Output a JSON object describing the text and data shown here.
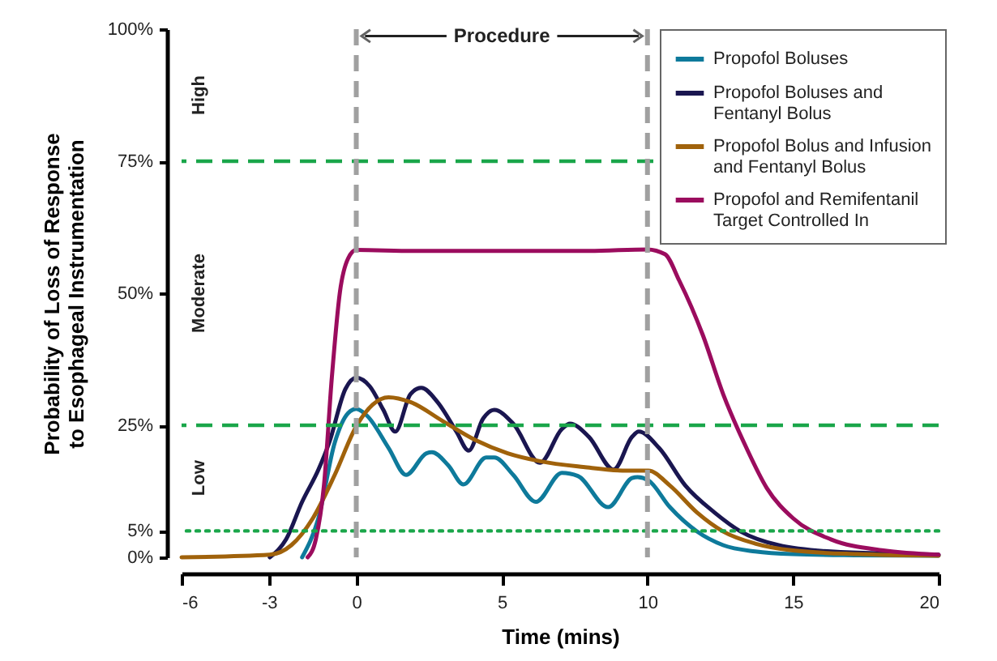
{
  "chart_data": {
    "type": "line",
    "xlabel": "Time (mins)",
    "ylabel": "Probability of Loss of Response to Esophageal Instrumentation",
    "xlim": [
      -6,
      20
    ],
    "xticks": [
      -6,
      -3,
      0,
      5,
      10,
      15,
      20
    ],
    "ylim": [
      0,
      100
    ],
    "yticks": [
      {
        "value": 0,
        "label": "0%"
      },
      {
        "value": 5,
        "label": "5%"
      },
      {
        "value": 25,
        "label": "25%"
      },
      {
        "value": 50,
        "label": "50%"
      },
      {
        "value": 75,
        "label": "75%"
      },
      {
        "value": 100,
        "label": "100%"
      }
    ],
    "grid": false,
    "legend": "top right",
    "marker": "none",
    "line_style": "solid",
    "series": [
      {
        "name": "Propofol Boluses",
        "color": "#0e7a9b",
        "x": [
          -1.86,
          -1.3,
          -0.74,
          -0.28,
          0,
          0.37,
          1.11,
          1.71,
          2.41,
          2.6,
          3.16,
          3.68,
          4.46,
          4.74,
          5.39,
          6.17,
          7.06,
          7.61,
          8.65,
          9.47,
          9.66,
          10.03,
          10.77,
          11.7,
          12.6,
          13.7,
          15,
          17.2,
          20
        ],
        "values": [
          0,
          7.4,
          21.7,
          27.3,
          28.1,
          26.8,
          20.7,
          15.6,
          19.7,
          19.9,
          17.4,
          13.8,
          18.9,
          18.9,
          15.6,
          10.5,
          16,
          15.4,
          9.5,
          15,
          15.2,
          14.6,
          9.5,
          4.9,
          2.3,
          1.1,
          0.6,
          0.4,
          0.3
        ]
      },
      {
        "name": "Propofol Boluses and Fentanyl Bolus",
        "color": "#1a1650",
        "x": [
          -2.97,
          -2.41,
          -1.86,
          -1.3,
          -0.93,
          -0.37,
          0,
          0.46,
          0.93,
          1.34,
          1.86,
          2.23,
          2.79,
          3.44,
          3.86,
          4.36,
          4.74,
          5.39,
          6.31,
          7.06,
          7.34,
          7.99,
          8.84,
          9.47,
          9.7,
          10.4,
          11.3,
          12.3,
          13.2,
          14.5,
          16.3,
          20
        ],
        "values": [
          0,
          3.4,
          10.5,
          16.6,
          21.7,
          31.9,
          34,
          32.4,
          27.9,
          23.8,
          30.9,
          32.1,
          29.4,
          23.8,
          20.2,
          26.3,
          27.9,
          25.3,
          17.9,
          24.3,
          25.3,
          22.8,
          16.6,
          22.8,
          23.8,
          20.7,
          13.6,
          8.5,
          4.9,
          2.3,
          1.1,
          0.5
        ]
      },
      {
        "name": "Propofol Bolus and Infusion and Fentanyl Bolus",
        "color": "#a0620b",
        "x": [
          -6,
          -2.97,
          -2.23,
          -1.49,
          -0.74,
          0,
          0.56,
          1.11,
          1.86,
          2.97,
          4.09,
          5.2,
          6.31,
          7.8,
          9.29,
          10.03,
          10.77,
          11.7,
          12.6,
          13.7,
          15,
          17.2,
          20
        ],
        "values": [
          0,
          0.5,
          2.3,
          7.4,
          15.6,
          24.8,
          28.9,
          30.3,
          29.4,
          25.8,
          22.2,
          19.7,
          18.2,
          17.1,
          16.4,
          16.4,
          13.6,
          8.5,
          4.9,
          2.6,
          1.3,
          0.6,
          0.3
        ]
      },
      {
        "name": "Propofol and Remifentanil Target Controlled In",
        "color": "#9b0c5e",
        "x": [
          -1.67,
          -1.39,
          -1.11,
          -0.84,
          -0.56,
          -0.28,
          0,
          2,
          5,
          8,
          10,
          10.6,
          11.1,
          11.9,
          12.6,
          13.4,
          14.1,
          15,
          16.3,
          18.1,
          20
        ],
        "values": [
          0,
          3.4,
          13.6,
          34,
          50.3,
          56.6,
          58.2,
          58,
          58,
          58,
          58.3,
          57.4,
          52.3,
          42.1,
          30.9,
          20.7,
          13.1,
          7.4,
          3.4,
          1.3,
          0.5
        ]
      }
    ],
    "ref_lines": [
      {
        "axis": "y",
        "value": 75,
        "color": "#1aa64a",
        "line_style": "dashed"
      },
      {
        "axis": "y",
        "value": 25,
        "color": "#1aa64a",
        "line_style": "dashed"
      },
      {
        "axis": "y",
        "value": 5,
        "color": "#1aa64a",
        "line_style": "dotted"
      },
      {
        "axis": "x",
        "value": 0,
        "color": "#a0a0a0",
        "line_style": "dashed"
      },
      {
        "axis": "x",
        "value": 10,
        "color": "#a0a0a0",
        "line_style": "dashed"
      }
    ],
    "annotations": [
      "Procedure",
      "High",
      "Moderate",
      "Low"
    ]
  }
}
